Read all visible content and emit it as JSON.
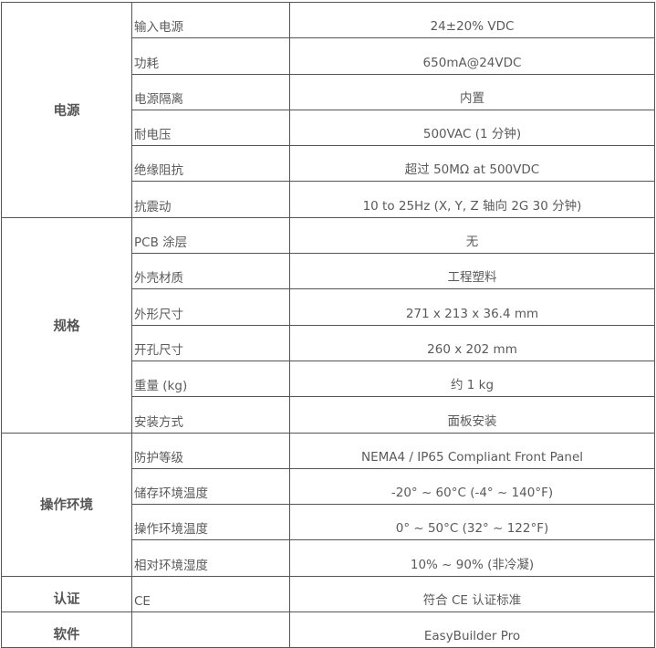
{
  "groups": [
    {
      "category": "电源",
      "rows": [
        {
          "key": "输入电源",
          "value": "24±20% VDC"
        },
        {
          "key": "功耗",
          "value": "650mA@24VDC"
        },
        {
          "key": "电源隔离",
          "value": "内置"
        },
        {
          "key": "耐电压",
          "value": "500VAC (1 分钟)"
        },
        {
          "key": "绝缘阻抗",
          "value": "超过 50MΩ at 500VDC"
        },
        {
          "key": "抗震动",
          "value": "10 to 25Hz (X, Y, Z  轴向  2G 30 分钟)"
        }
      ]
    },
    {
      "category": "规格",
      "rows": [
        {
          "key": "PCB  涂层",
          "value": "无"
        },
        {
          "key": "外壳材质",
          "value": "工程塑料"
        },
        {
          "key": "外形尺寸",
          "value": "271 x 213 x 36.4 mm"
        },
        {
          "key": "开孔尺寸",
          "value": "260 x 202 mm"
        },
        {
          "key": "重量 (kg)",
          "value": "约 1 kg"
        },
        {
          "key": "安装方式",
          "value": "面板安装"
        }
      ]
    },
    {
      "category": "操作环境",
      "rows": [
        {
          "key": "防护等级",
          "value": "NEMA4 / IP65 Compliant Front Panel"
        },
        {
          "key": "储存环境温度",
          "value": "-20°  ~ 60°C (-4°  ~ 140°F)"
        },
        {
          "key": "操作环境温度",
          "value": "0°  ~ 50°C (32°  ~ 122°F)"
        },
        {
          "key": "相对环境湿度",
          "value": "10% ~ 90% (非冷凝)"
        }
      ]
    },
    {
      "category": "认证",
      "rows": [
        {
          "key": "CE",
          "value": "符合 CE 认证标准"
        }
      ]
    },
    {
      "category": "软件",
      "rows": [
        {
          "key": "",
          "value": "EasyBuilder Pro"
        }
      ]
    }
  ]
}
